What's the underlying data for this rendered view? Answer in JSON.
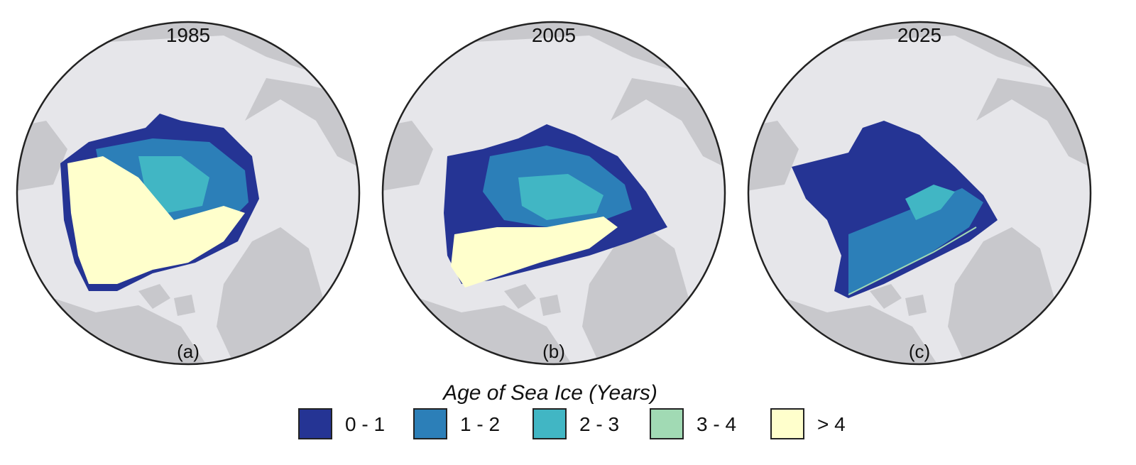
{
  "maps": [
    {
      "year": "1985",
      "panel": "(a)"
    },
    {
      "year": "2005",
      "panel": "(b)"
    },
    {
      "year": "2025",
      "panel": "(c)"
    }
  ],
  "legend": {
    "title": "Age of Sea Ice (Years)",
    "items": [
      {
        "label": "0 - 1",
        "color": "#253494"
      },
      {
        "label": "1 - 2",
        "color": "#2c7fb8"
      },
      {
        "label": "2 - 3",
        "color": "#41b6c4"
      },
      {
        "label": "3 - 4",
        "color": "#a1dab4"
      },
      {
        "label": "> 4",
        "color": "#ffffcc"
      }
    ]
  },
  "colors": {
    "ocean": "#e6e6ea",
    "land": "#c8c8cc",
    "outline": "#222222"
  }
}
